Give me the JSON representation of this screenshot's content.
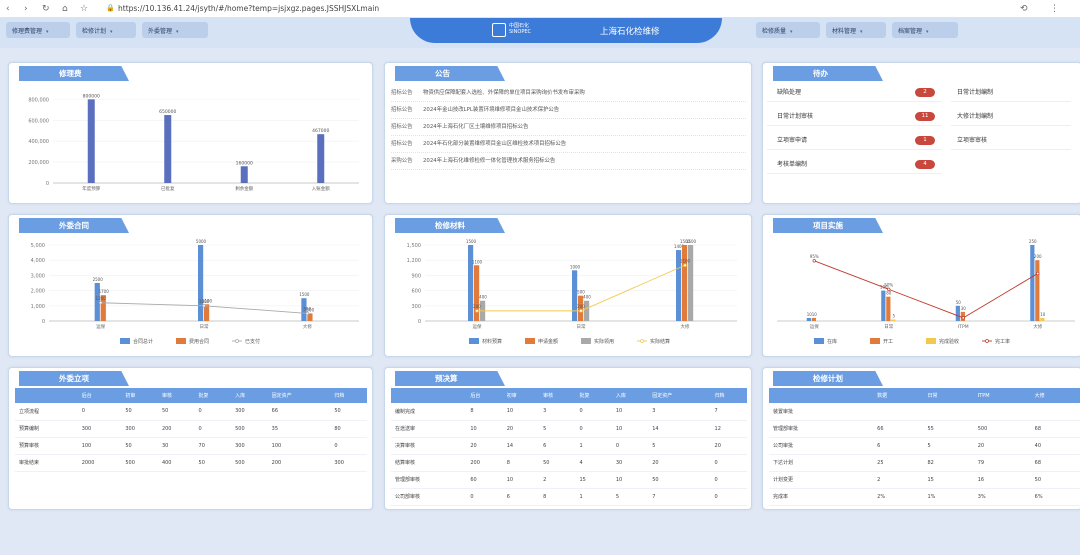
{
  "browser": {
    "url": "https://10.136.41.24/jsyth/#/home?temp=jsjxgz.pages.JSSHJSXLmain"
  },
  "header": {
    "left_menus": [
      "修理费管理",
      "检修计划",
      "外委管理"
    ],
    "right_menus": [
      "检修质量",
      "材料管理",
      "档案管理"
    ],
    "logo_cn": "中国石化",
    "logo_en": "SINOPEC",
    "title": "上海石化检维修"
  },
  "repair_fee": {
    "title": "修理费",
    "chart_data": {
      "type": "bar",
      "categories": [
        "年度预算",
        "已批复",
        "剩余金额",
        "入账金额"
      ],
      "values": [
        800000,
        650000,
        160000,
        467000
      ],
      "data_labels": [
        "800000",
        "650000",
        "160000",
        "467000"
      ],
      "yticks": [
        "0",
        "200,000",
        "400,000",
        "600,000",
        "800,000"
      ],
      "ylim": [
        0,
        880000
      ],
      "color": "#5b6fbf"
    }
  },
  "notices": {
    "title": "公告",
    "items": [
      {
        "cat": "招标公告",
        "text": "物资供应保障配套入选检、外保障的单位项目采购询价书发布审采购"
      },
      {
        "cat": "招标公告",
        "text": "2024年金山技改LPL装置环境维修项目金山技术保护公告"
      },
      {
        "cat": "招标公告",
        "text": "2024年上海石化厂区土壤维修项目招标公告"
      },
      {
        "cat": "招标公告",
        "text": "2024年石化部分装置维修项目金山区维检技术项目招标公告"
      },
      {
        "cat": "采购公告",
        "text": "2024年上海石化维修检修一体化管理技术服务招标公告"
      }
    ]
  },
  "todo": {
    "title": "待办",
    "items": [
      {
        "label": "缺陷处理",
        "count": "2"
      },
      {
        "label": "日常计划审核",
        "count": "11"
      },
      {
        "label": "立项审申请",
        "count": "1"
      },
      {
        "label": "考核单编制",
        "count": "4"
      }
    ],
    "items_right": [
      "日常计划编制",
      "大修计划编制",
      "立项审审核"
    ]
  },
  "outsourcing_contract": {
    "title": "外委合同",
    "chart_data": {
      "type": "bar",
      "categories": [
        "运保",
        "日常",
        "大修"
      ],
      "series": [
        {
          "name": "合同总计",
          "values": [
            2500,
            5000,
            1500
          ],
          "color": "#5b8fd6"
        },
        {
          "name": "费用合同",
          "values": [
            1700,
            1100,
            500
          ],
          "color": "#e07b3c"
        },
        {
          "name": "已支付",
          "values": [
            1200,
            1000,
            500
          ],
          "color": "#a9a9a9",
          "type": "line"
        }
      ],
      "data_labels": [
        [
          "2500",
          "5000",
          "1500"
        ],
        [
          "1700",
          "1100",
          "500"
        ],
        [
          "1200",
          "1000",
          "500"
        ]
      ],
      "yticks": [
        "0",
        "1,000",
        "2,000",
        "3,000",
        "4,000",
        "5,000"
      ],
      "ylim": [
        0,
        5000
      ]
    }
  },
  "repair_material": {
    "title": "检修材料",
    "chart_data": {
      "type": "bar",
      "categories": [
        "运保",
        "日常",
        "大修"
      ],
      "series": [
        {
          "name": "材料预算",
          "values": [
            1500,
            1000,
            1400
          ],
          "color": "#5b8fd6"
        },
        {
          "name": "申请金额",
          "values": [
            1100,
            500,
            1500
          ],
          "color": "#e07b3c"
        },
        {
          "name": "实际领用",
          "values": [
            400,
            400,
            1500
          ],
          "color": "#a9a9a9"
        },
        {
          "name": "实际结算",
          "values": [
            200,
            200,
            1100
          ],
          "color": "#f2c94c",
          "type": "line"
        }
      ],
      "data_labels": [
        [
          "1500",
          "1000",
          "1400"
        ],
        [
          "1100",
          "500",
          "1500"
        ],
        [
          "400",
          "400",
          "1500"
        ],
        [
          "200",
          "200",
          "1100"
        ]
      ],
      "yticks": [
        "0",
        "300",
        "600",
        "900",
        "1,200",
        "1,500"
      ],
      "ylim": [
        0,
        1500
      ]
    }
  },
  "project_impl": {
    "title": "项目实施",
    "chart_data": {
      "type": "bar",
      "categories": [
        "运保",
        "日常",
        "ITPM",
        "大修"
      ],
      "series": [
        {
          "name": "在库",
          "values": [
            10,
            100,
            50,
            250
          ],
          "color": "#5b8fd6"
        },
        {
          "name": "开工",
          "values": [
            10,
            80,
            30,
            200
          ],
          "color": "#e07b3c"
        },
        {
          "name": "完成验收",
          "values": [
            0,
            5,
            0,
            10
          ],
          "color": "#f2c94c"
        },
        {
          "name": "完工率",
          "values": [
            95,
            50,
            5,
            75
          ],
          "color": "#c0392b",
          "type": "line"
        }
      ],
      "data_labels": [
        [
          "10",
          "100",
          "50",
          "250"
        ],
        [
          "10",
          "80",
          "30",
          "200"
        ],
        [
          "",
          "5",
          "",
          "10"
        ],
        [
          "95%",
          "50%",
          "",
          ""
        ]
      ]
    }
  },
  "outsourcing_project": {
    "title": "外委立项",
    "columns": [
      "",
      "后台",
      "初审",
      "审核",
      "批复",
      "入库",
      "固定资产",
      "归档"
    ],
    "rows": [
      [
        "立项流程",
        "0",
        "50",
        "50",
        "0",
        "300",
        "66",
        "50"
      ],
      [
        "预算编制",
        "300",
        "300",
        "200",
        "0",
        "500",
        "35",
        "80"
      ],
      [
        "预算审核",
        "100",
        "50",
        "30",
        "70",
        "300",
        "100",
        "0"
      ],
      [
        "审批结束",
        "2000",
        "500",
        "400",
        "50",
        "500",
        "200",
        "300"
      ]
    ]
  },
  "settlement": {
    "title": "预决算",
    "columns": [
      "",
      "后台",
      "初审",
      "审核",
      "批复",
      "入库",
      "固定资产",
      "归档"
    ],
    "rows": [
      [
        "编制完成",
        "8",
        "10",
        "3",
        "0",
        "10",
        "3",
        "7"
      ],
      [
        "在途送审",
        "10",
        "20",
        "5",
        "0",
        "10",
        "14",
        "12"
      ],
      [
        "决算审核",
        "20",
        "14",
        "6",
        "1",
        "0",
        "5",
        "20"
      ],
      [
        "结算审核",
        "200",
        "8",
        "50",
        "4",
        "30",
        "20",
        "0"
      ],
      [
        "管理部审核",
        "60",
        "10",
        "2",
        "15",
        "10",
        "50",
        "0"
      ],
      [
        "公司部审核",
        "0",
        "6",
        "8",
        "1",
        "5",
        "7",
        "0"
      ]
    ]
  },
  "repair_plan": {
    "title": "检修计划",
    "columns": [
      "",
      "数据",
      "日常",
      "ITPM",
      "大修"
    ],
    "rows": [
      [
        "装置审批",
        "",
        "",
        "",
        ""
      ],
      [
        "管理部审批",
        "66",
        "55",
        "500",
        "68"
      ],
      [
        "公司审批",
        "6",
        "5",
        "20",
        "40"
      ],
      [
        "下达计划",
        "25",
        "82",
        "79",
        "68"
      ],
      [
        "计划变更",
        "2",
        "15",
        "16",
        "50"
      ],
      [
        "完成率",
        "2%",
        "1%",
        "3%",
        "6%"
      ]
    ]
  }
}
